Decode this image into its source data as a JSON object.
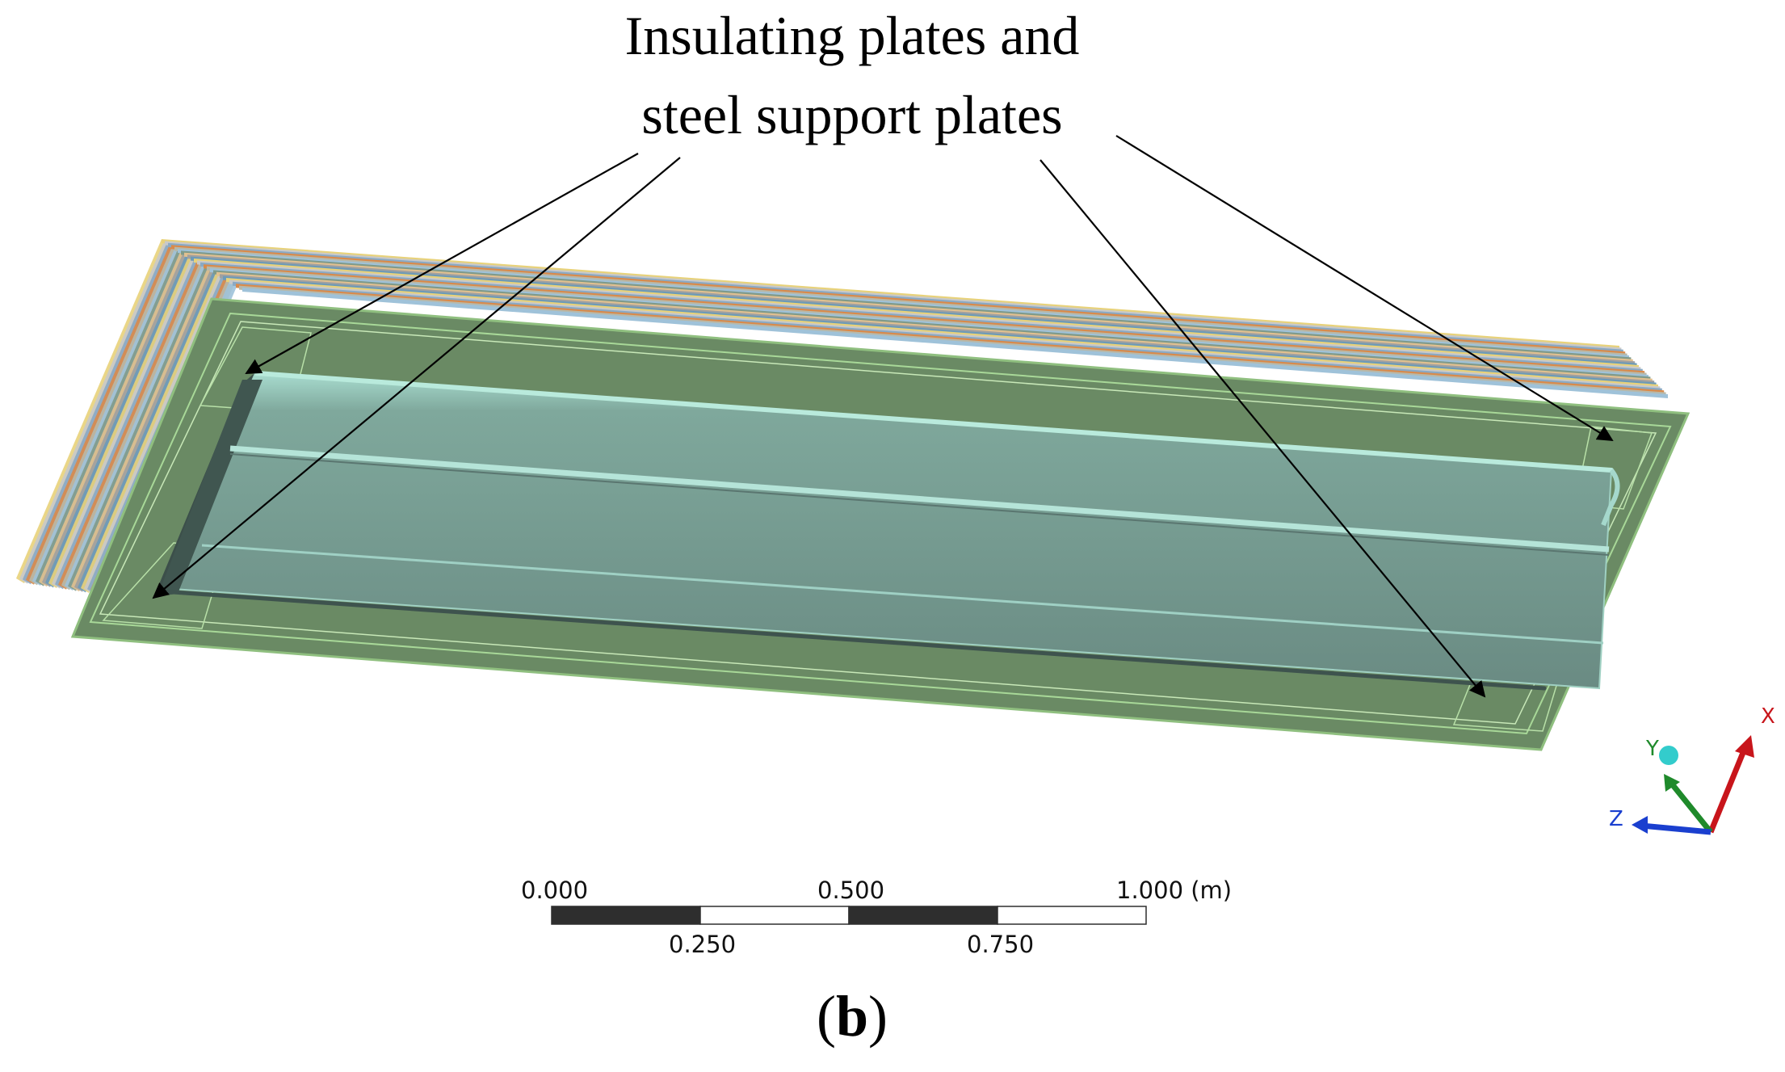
{
  "callout": {
    "line1": "Insulating plates and",
    "line2": "steel support plates"
  },
  "scale_bar": {
    "top_labels": [
      "0.000",
      "0.500",
      "1.000 (m)"
    ],
    "bottom_labels": [
      "0.250",
      "0.750"
    ],
    "segment_colors": [
      "#2e2e2e",
      "#ffffff",
      "#2e2e2e",
      "#ffffff"
    ]
  },
  "triad": {
    "x_label": "X",
    "y_label": "Y",
    "z_label": "Z",
    "x_color": "#c8151b",
    "y_color": "#1f8a2b",
    "z_color": "#1a3fcf",
    "origin_color": "#33cccc"
  },
  "caption": {
    "open": "(",
    "letter": "b",
    "close": ")"
  },
  "colors": {
    "plate_top": "#6a8a64",
    "beam": "#6c8c84",
    "beam_highlight": "#a7d8cc",
    "layer_stack": [
      "#e8d27a",
      "#c9c9c9",
      "#8aa9c4",
      "#d98a4a",
      "#b8b8a8",
      "#9fc2d9",
      "#7f9a8a",
      "#e0c090",
      "#a0a0a0",
      "#6c9ab8"
    ]
  }
}
